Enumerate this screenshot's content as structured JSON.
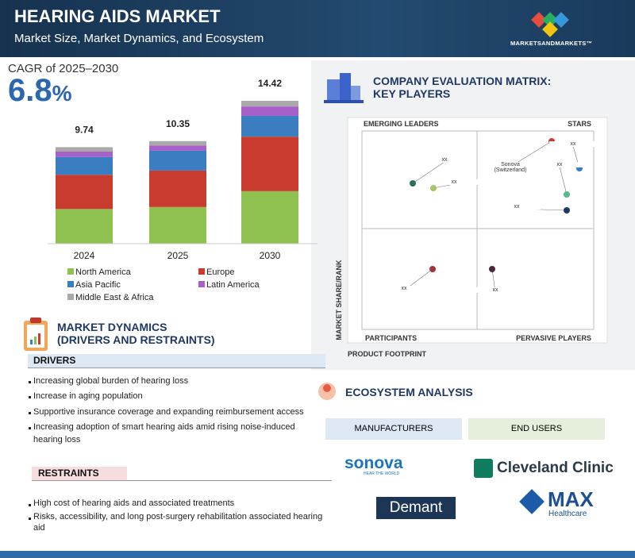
{
  "header": {
    "title": "HEARING AIDS MARKET",
    "subtitle": "Market Size, Market Dynamics, and Ecosystem",
    "brand": "MARKETSANDMARKETS™"
  },
  "cagr": {
    "label": "CAGR of 2025–2030",
    "value": "6.8",
    "unit": "%"
  },
  "chart_data": {
    "type": "stacked_bar",
    "categories": [
      "2024",
      "2025",
      "2030"
    ],
    "totals": [
      9.74,
      10.35,
      14.42
    ],
    "series": [
      {
        "name": "North America",
        "color": "#8fc150",
        "values": [
          3.5,
          3.7,
          5.3
        ]
      },
      {
        "name": "Europe",
        "color": "#c93a2f",
        "values": [
          3.45,
          3.68,
          5.5
        ]
      },
      {
        "name": "Asia Pacific",
        "color": "#3b7dc1",
        "values": [
          1.8,
          2.0,
          2.1
        ]
      },
      {
        "name": "Latin America",
        "color": "#a660c8",
        "values": [
          0.54,
          0.52,
          0.95
        ]
      },
      {
        "name": "Middle East & Africa",
        "color": "#a9a9a9",
        "values": [
          0.45,
          0.45,
          0.57
        ]
      }
    ]
  },
  "matrix": {
    "title_line1": "COMPANY EVALUATION MATRIX:",
    "title_line2": "KEY PLAYERS",
    "quadrants": [
      "EMERGING LEADERS",
      "STARS",
      "PARTICIPANTS",
      "PERVASIVE PLAYERS"
    ],
    "y_axis": "MARKET SHARE/RANK",
    "x_axis": "PRODUCT FOOTPRINT",
    "points": [
      "xx",
      "xx",
      "Sonova (Switzerland)",
      "xx",
      "xx",
      "xx",
      "xx",
      "xx"
    ]
  },
  "dynamics": {
    "title_line1": "MARKET DYNAMICS",
    "title_line2": "(DRIVERS AND RESTRAINTS)",
    "drivers_heading": "DRIVERS",
    "drivers": [
      "Increasing global burden of hearing loss",
      "Increase in aging population",
      "Supportive insurance coverage and expanding reimbursement access",
      "Increasing adoption of smart hearing aids amid rising noise-induced hearing loss"
    ],
    "restraints_heading": "RESTRAINTS",
    "restraints": [
      "High cost of hearing aids and associated treatments",
      "Risks, accessibility, and long post-surgery rehabilitation associated hearing aid"
    ]
  },
  "ecosystem": {
    "title": "ECOSYSTEM ANALYSIS",
    "columns": [
      "MANUFACTURERS",
      "END USERS"
    ],
    "manufacturers": [
      "sonova",
      "HEAR THE WORLD",
      "Demant"
    ],
    "end_users": [
      "Cleveland Clinic",
      "MAX",
      "Healthcare"
    ]
  }
}
